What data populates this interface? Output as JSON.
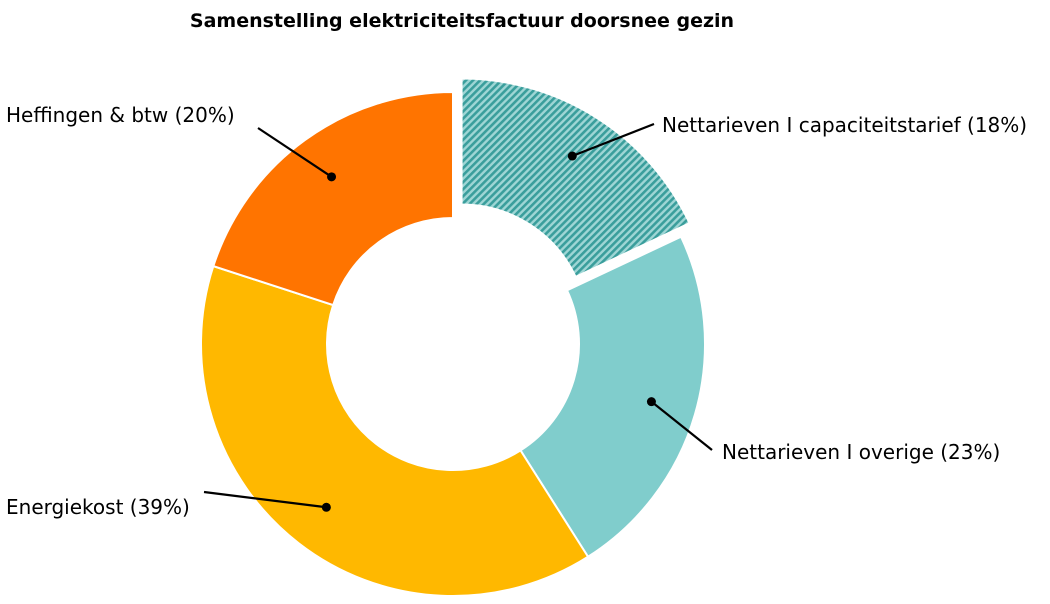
{
  "chart_data": {
    "type": "pie",
    "style": "donut",
    "title": "Samenstelling elektriciteitsfactuur doorsnee gezin",
    "slices": [
      {
        "name": "Nettarieven I capaciteitstarief",
        "value": 18,
        "label": "Nettarieven I capaciteitstarief (18%)",
        "color": "#3fa8a6",
        "pattern": "hatched",
        "exploded": true
      },
      {
        "name": "Nettarieven I overige",
        "value": 23,
        "label": "Nettarieven I overige (23%)",
        "color": "#80cdcc",
        "pattern": "solid",
        "exploded": false
      },
      {
        "name": "Energiekost",
        "value": 39,
        "label": "Energiekost (39%)",
        "color": "#ffb800",
        "pattern": "solid",
        "exploded": false
      },
      {
        "name": "Heffingen & btw",
        "value": 20,
        "label": "Heffingen & btw (20%)",
        "color": "#ff7400",
        "pattern": "solid",
        "exploded": false
      }
    ],
    "legend": "none"
  }
}
